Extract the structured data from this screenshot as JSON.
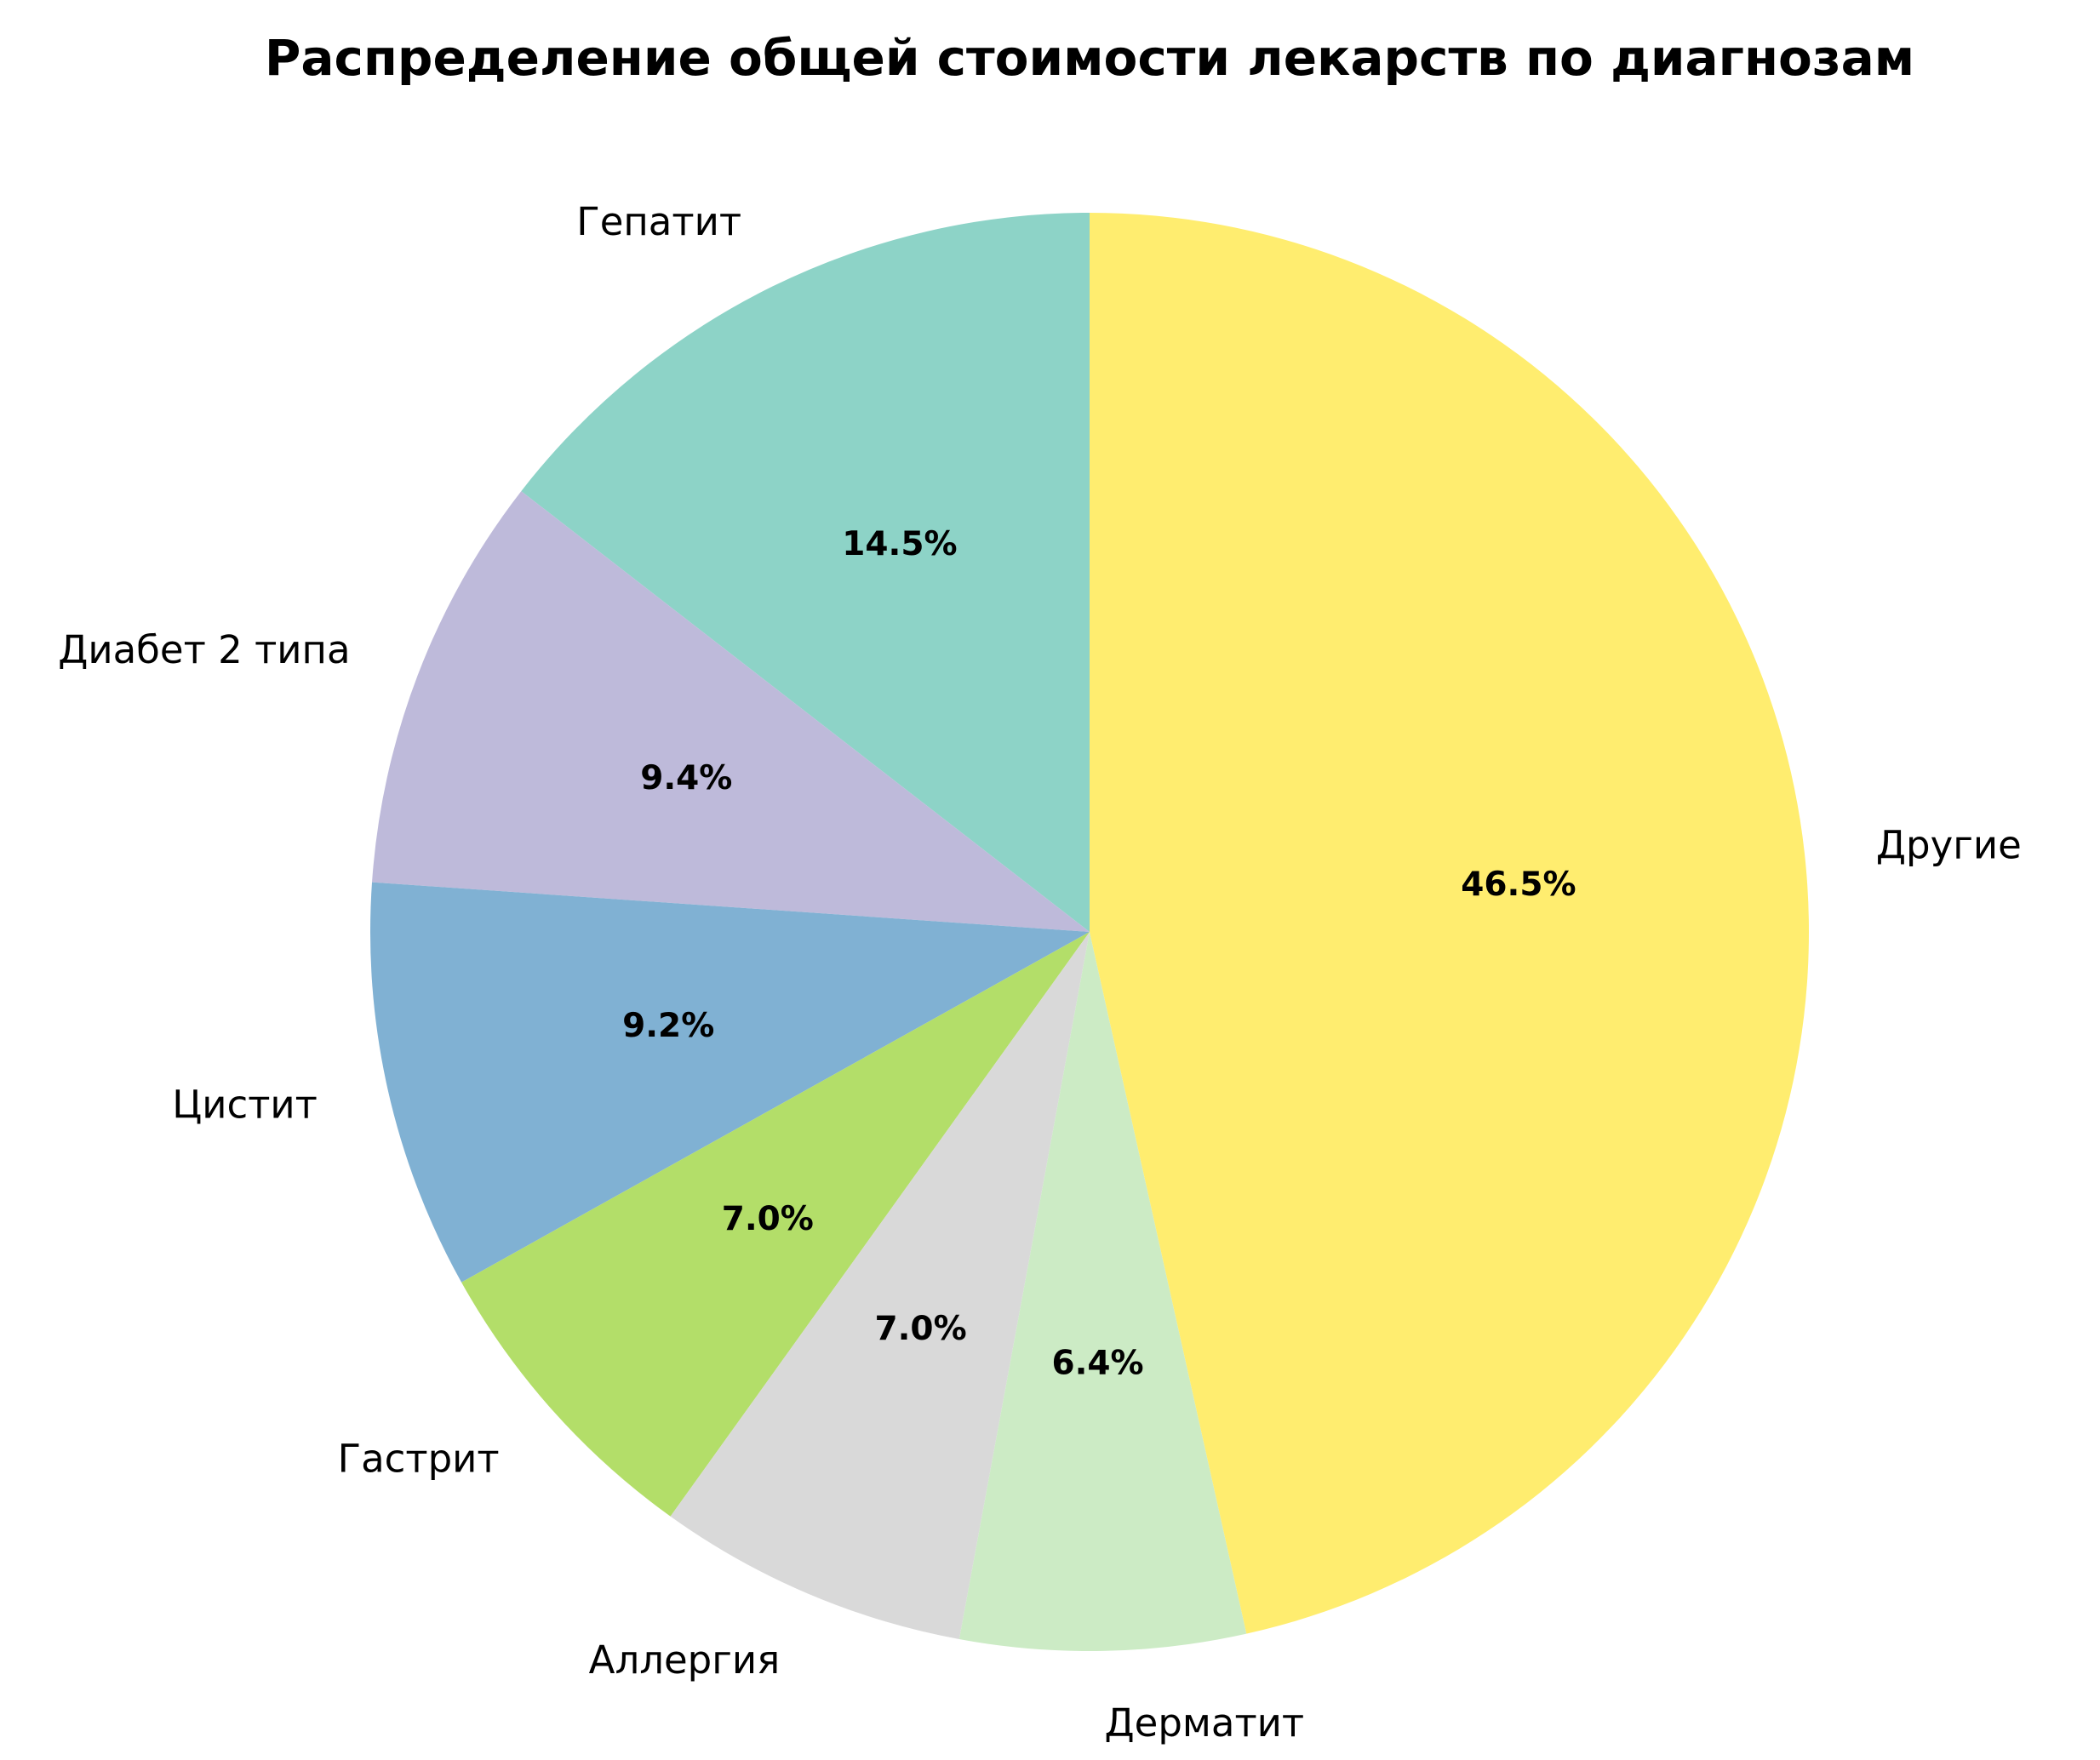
{
  "chart_data": {
    "type": "pie",
    "title": "Распределение общей стоимости лекарств по диагнозам",
    "slices": [
      {
        "label": "Гепатит",
        "value": 14.5,
        "pct_label": "14.5%",
        "color": "#8dd3c7"
      },
      {
        "label": "Диабет 2 типа",
        "value": 9.4,
        "pct_label": "9.4%",
        "color": "#bebada"
      },
      {
        "label": "Цистит",
        "value": 9.2,
        "pct_label": "9.2%",
        "color": "#80b1d3"
      },
      {
        "label": "Гастрит",
        "value": 7.0,
        "pct_label": "7.0%",
        "color": "#b3de69"
      },
      {
        "label": "Аллергия",
        "value": 7.0,
        "pct_label": "7.0%",
        "color": "#d9d9d9"
      },
      {
        "label": "Дерматит",
        "value": 6.4,
        "pct_label": "6.4%",
        "color": "#ccebc5"
      },
      {
        "label": "Другие",
        "value": 46.5,
        "pct_label": "46.5%",
        "color": "#ffed6f"
      }
    ],
    "start_angle_deg": 90,
    "direction": "counterclockwise",
    "legend": "none"
  }
}
